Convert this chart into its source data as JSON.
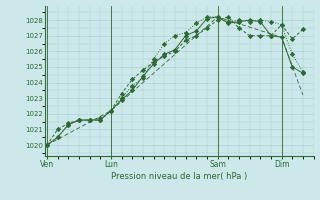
{
  "bg_color": "#cce8ea",
  "grid_color": "#a8cccf",
  "line_color": "#2d6a2d",
  "xlabel": "Pression niveau de la mer( hPa )",
  "ylim": [
    1019.3,
    1028.9
  ],
  "yticks": [
    1020,
    1021,
    1022,
    1023,
    1024,
    1025,
    1026,
    1027,
    1028
  ],
  "xtick_labels": [
    "Ven",
    "Lun",
    "Sam",
    "Dim"
  ],
  "xtick_pos": [
    0,
    3,
    8,
    11
  ],
  "xlim": [
    -0.1,
    12.5
  ],
  "series1_x": [
    0,
    0.5,
    1,
    1.5,
    2,
    2.5,
    3,
    3.5,
    4,
    4.5,
    5,
    5.5,
    6,
    6.5,
    7,
    7.5,
    8,
    8.5,
    9,
    9.5,
    10,
    10.5,
    11,
    11.5,
    12
  ],
  "series1_y": [
    1020.0,
    1020.5,
    1021.3,
    1021.6,
    1021.6,
    1021.6,
    1022.2,
    1022.9,
    1023.5,
    1024.4,
    1025.2,
    1025.8,
    1026.1,
    1027.0,
    1027.3,
    1028.1,
    1028.2,
    1027.8,
    1027.9,
    1028.0,
    1027.9,
    1027.0,
    1026.9,
    1025.0,
    1024.6
  ],
  "series2_x": [
    0,
    0.5,
    1,
    1.5,
    2,
    2.5,
    3,
    3.5,
    4,
    4.5,
    5,
    5.5,
    6,
    6.5,
    7,
    7.5,
    8,
    8.5,
    9,
    9.5,
    10,
    10.5,
    11,
    11.5,
    12
  ],
  "series2_y": [
    1020.0,
    1020.5,
    1021.3,
    1021.6,
    1021.6,
    1021.7,
    1022.2,
    1023.0,
    1023.8,
    1024.3,
    1025.5,
    1026.5,
    1027.0,
    1027.2,
    1027.8,
    1028.2,
    1028.2,
    1027.9,
    1028.0,
    1027.9,
    1028.0,
    1027.9,
    1027.7,
    1025.8,
    1024.7
  ],
  "series3_x": [
    0,
    0.5,
    1,
    1.5,
    2,
    2.5,
    3,
    3.5,
    4,
    4.5,
    5,
    5.5,
    6,
    6.5,
    7,
    7.5,
    8,
    8.5,
    9,
    9.5,
    10,
    10.5,
    11,
    11.5,
    12
  ],
  "series3_y": [
    1020.0,
    1021.0,
    1021.4,
    1021.6,
    1021.6,
    1021.6,
    1022.2,
    1023.3,
    1024.2,
    1024.8,
    1025.3,
    1025.7,
    1026.0,
    1026.7,
    1027.0,
    1027.5,
    1028.0,
    1028.2,
    1027.5,
    1027.0,
    1027.0,
    1027.0,
    1027.7,
    1026.8,
    1027.4
  ],
  "series4_x": [
    0,
    3,
    8,
    11,
    12
  ],
  "series4_y": [
    1020.0,
    1022.2,
    1028.2,
    1026.9,
    1023.2
  ]
}
